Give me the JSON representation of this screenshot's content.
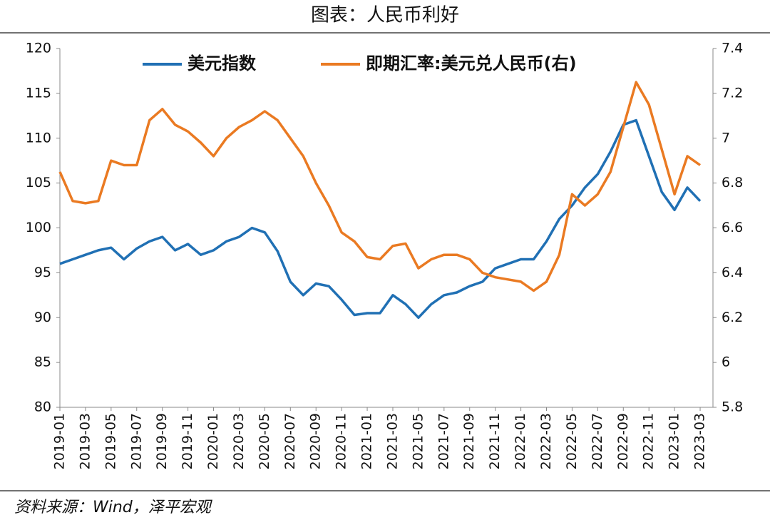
{
  "chart_data": {
    "type": "line",
    "title": "图表：人民币利好",
    "source": "资料来源：Wind，泽平宏观",
    "categories": [
      "2019-01",
      null,
      "2019-03",
      null,
      "2019-05",
      null,
      "2019-07",
      null,
      "2019-09",
      null,
      "2019-11",
      null,
      "2020-01",
      null,
      "2020-03",
      null,
      "2020-05",
      null,
      "2020-07",
      null,
      "2020-09",
      null,
      "2020-11",
      null,
      "2021-01",
      null,
      "2021-03",
      null,
      "2021-05",
      null,
      "2021-07",
      null,
      "2021-09",
      null,
      "2021-11",
      null,
      "2022-01",
      null,
      "2022-03",
      null,
      "2022-05",
      null,
      "2022-07",
      null,
      "2022-09",
      null,
      "2022-11",
      null,
      "2023-01",
      null,
      "2023-03"
    ],
    "series": [
      {
        "name": "美元指数",
        "color": "#2070b4",
        "axis": "y",
        "values": [
          96,
          96.5,
          97,
          97.5,
          97.8,
          96.5,
          97.7,
          98.5,
          99,
          97.5,
          98.2,
          97,
          97.5,
          98.5,
          99,
          100,
          99.5,
          97.4,
          94,
          92.5,
          93.8,
          93.5,
          92,
          90.3,
          90.5,
          90.5,
          92.5,
          91.5,
          90,
          91.5,
          92.5,
          92.8,
          93.5,
          94,
          95.5,
          96,
          96.5,
          96.5,
          98.5,
          101,
          102.5,
          104.5,
          106,
          108.5,
          111.5,
          112,
          108,
          104,
          102,
          104.5,
          103
        ]
      },
      {
        "name": "即期汇率:美元兑人民币(右)",
        "color": "#ea7a22",
        "axis": "y2",
        "values": [
          6.85,
          6.72,
          6.71,
          6.72,
          6.9,
          6.88,
          6.88,
          7.08,
          7.13,
          7.06,
          7.03,
          6.98,
          6.92,
          7.0,
          7.05,
          7.08,
          7.12,
          7.08,
          7.0,
          6.92,
          6.8,
          6.7,
          6.58,
          6.54,
          6.47,
          6.46,
          6.52,
          6.53,
          6.42,
          6.46,
          6.48,
          6.48,
          6.46,
          6.4,
          6.38,
          6.37,
          6.36,
          6.32,
          6.36,
          6.48,
          6.75,
          6.7,
          6.75,
          6.85,
          7.05,
          7.25,
          7.15,
          6.95,
          6.75,
          6.92,
          6.88
        ]
      }
    ],
    "ylim": [
      80,
      120
    ],
    "yticks": [
      80,
      85,
      90,
      95,
      100,
      105,
      110,
      115,
      120
    ],
    "y2lim": [
      5.8,
      7.4
    ],
    "y2ticks": [
      5.8,
      6,
      6.2,
      6.4,
      6.6,
      6.8,
      7,
      7.2,
      7.4
    ]
  }
}
